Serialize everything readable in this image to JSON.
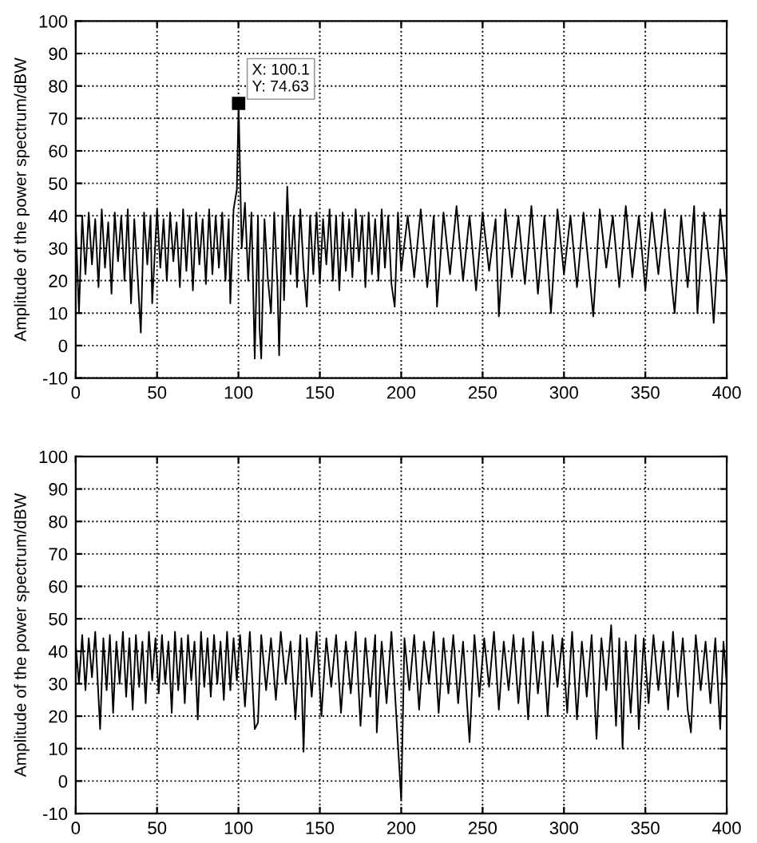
{
  "chart_data": [
    {
      "type": "line",
      "ylabel": "Amplitude of the power spectrum/dBW",
      "xlim": [
        0,
        400
      ],
      "ylim": [
        -10,
        100
      ],
      "xticks": [
        0,
        50,
        100,
        150,
        200,
        250,
        300,
        350,
        400
      ],
      "yticks": [
        -10,
        0,
        10,
        20,
        30,
        40,
        50,
        60,
        70,
        80,
        90,
        100
      ],
      "grid": true,
      "line_style": "solid",
      "annotations": [
        {
          "text": "X: 100.1\nY: 74.63",
          "x": 100.1,
          "y": 74.63
        }
      ],
      "series": [
        {
          "color": "#000000",
          "x": [
            0,
            2,
            4,
            6,
            8,
            10,
            12,
            14,
            16,
            18,
            20,
            22,
            24,
            26,
            28,
            30,
            32,
            34,
            36,
            38,
            40,
            42,
            44,
            46,
            47,
            50,
            52,
            54,
            56,
            58,
            60,
            62,
            64,
            66,
            68,
            70,
            72,
            74,
            76,
            78,
            80,
            82,
            84,
            86,
            88,
            90,
            92,
            94,
            95,
            97,
            99,
            100.1,
            101,
            102,
            104,
            106,
            108,
            110,
            112,
            113,
            114,
            116,
            118,
            120,
            122,
            124,
            125,
            127,
            128,
            130,
            132,
            134,
            136,
            138,
            140,
            142,
            144,
            146,
            148,
            150,
            152,
            154,
            156,
            158,
            160,
            162,
            164,
            166,
            168,
            170,
            172,
            174,
            176,
            178,
            180,
            182,
            184,
            186,
            188,
            190,
            192,
            194,
            196,
            198,
            200,
            204,
            208,
            212,
            216,
            220,
            222,
            226,
            230,
            234,
            238,
            242,
            246,
            250,
            254,
            258,
            260,
            264,
            268,
            272,
            276,
            280,
            284,
            288,
            292,
            296,
            300,
            304,
            308,
            312,
            316,
            318,
            322,
            326,
            330,
            334,
            338,
            342,
            346,
            350,
            354,
            358,
            362,
            366,
            368,
            372,
            376,
            380,
            382,
            386,
            390,
            392,
            396,
            400
          ],
          "values": [
            38,
            10,
            40,
            22,
            41,
            25,
            39,
            18,
            42,
            24,
            38,
            16,
            41,
            26,
            40,
            20,
            42,
            13,
            39,
            22,
            4,
            41,
            25,
            40,
            13,
            42,
            24,
            39,
            20,
            41,
            26,
            38,
            18,
            42,
            23,
            40,
            17,
            41,
            25,
            39,
            19,
            42,
            22,
            40,
            24,
            41,
            20,
            39,
            13,
            42,
            48,
            74.63,
            53,
            30,
            44,
            20,
            41,
            -4,
            40,
            5,
            -4,
            39,
            21,
            10,
            41,
            18,
            -3,
            40,
            14,
            49,
            22,
            40,
            18,
            42,
            24,
            12,
            40,
            22,
            41,
            19,
            39,
            25,
            42,
            20,
            40,
            17,
            41,
            23,
            39,
            21,
            42,
            26,
            40,
            18,
            41,
            22,
            39,
            20,
            42,
            24,
            40,
            19,
            12,
            41,
            23,
            40,
            21,
            42,
            18,
            40,
            12,
            41,
            22,
            43,
            20,
            40,
            17,
            41,
            23,
            39,
            9,
            42,
            21,
            40,
            19,
            43,
            16,
            40,
            10,
            42,
            22,
            40,
            18,
            41,
            20,
            9,
            42,
            24,
            40,
            18,
            43,
            21,
            40,
            17,
            41,
            22,
            42,
            20,
            10,
            40,
            18,
            43,
            10,
            41,
            22,
            7,
            42,
            20
          ]
        }
      ]
    },
    {
      "type": "line",
      "ylabel": "Amplitude of the power spectrum/dBW",
      "xlim": [
        0,
        400
      ],
      "ylim": [
        -10,
        100
      ],
      "xticks": [
        0,
        50,
        100,
        150,
        200,
        250,
        300,
        350,
        400
      ],
      "yticks": [
        -10,
        0,
        10,
        20,
        30,
        40,
        50,
        60,
        70,
        80,
        90,
        100
      ],
      "grid": true,
      "line_style": "solid",
      "series": [
        {
          "color": "#000000",
          "x": [
            0,
            2,
            4,
            6,
            8,
            10,
            12,
            15,
            17,
            19,
            21,
            23,
            25,
            27,
            29,
            31,
            33,
            35,
            37,
            39,
            41,
            43,
            45,
            47,
            49,
            51,
            53,
            55,
            57,
            59,
            61,
            63,
            65,
            67,
            69,
            71,
            73,
            75,
            77,
            79,
            81,
            83,
            85,
            87,
            89,
            91,
            93,
            95,
            97,
            99,
            101,
            104,
            107,
            110,
            112,
            114,
            117,
            120,
            123,
            126,
            129,
            132,
            135,
            138,
            140,
            142,
            145,
            148,
            151,
            154,
            157,
            160,
            163,
            166,
            169,
            172,
            175,
            178,
            181,
            184,
            185,
            188,
            191,
            194,
            197,
            200,
            202,
            205,
            208,
            211,
            214,
            217,
            220,
            223,
            226,
            229,
            232,
            235,
            238,
            242,
            245,
            248,
            251,
            254,
            257,
            260,
            263,
            266,
            269,
            272,
            275,
            278,
            281,
            284,
            287,
            290,
            293,
            296,
            299,
            302,
            305,
            308,
            311,
            314,
            317,
            320,
            323,
            326,
            329,
            332,
            334,
            336,
            338,
            341,
            344,
            346,
            349,
            352,
            355,
            358,
            361,
            364,
            367,
            370,
            373,
            376,
            378,
            381,
            384,
            387,
            390,
            393,
            396,
            398,
            400
          ],
          "values": [
            42,
            30,
            45,
            28,
            44,
            32,
            46,
            16,
            44,
            28,
            45,
            21,
            43,
            30,
            46,
            26,
            44,
            22,
            45,
            29,
            43,
            24,
            46,
            31,
            44,
            27,
            45,
            30,
            43,
            21,
            46,
            28,
            44,
            24,
            45,
            31,
            43,
            19,
            46,
            29,
            44,
            26,
            45,
            30,
            43,
            25,
            46,
            28,
            44,
            31,
            45,
            23,
            46,
            16,
            18,
            45,
            28,
            44,
            25,
            46,
            30,
            43,
            19,
            45,
            9,
            44,
            26,
            46,
            20,
            44,
            29,
            45,
            21,
            43,
            27,
            46,
            17,
            44,
            26,
            45,
            15,
            43,
            24,
            46,
            20,
            -6,
            44,
            28,
            45,
            22,
            43,
            30,
            46,
            21,
            44,
            27,
            45,
            24,
            43,
            12,
            45,
            26,
            44,
            29,
            46,
            22,
            43,
            28,
            45,
            24,
            44,
            19,
            46,
            27,
            43,
            20,
            45,
            29,
            44,
            21,
            46,
            19,
            43,
            26,
            45,
            13,
            44,
            28,
            48,
            17,
            44,
            10,
            43,
            21,
            45,
            16,
            44,
            24,
            45,
            28,
            43,
            22,
            46,
            26,
            44,
            22,
            15,
            45,
            28,
            43,
            24,
            44,
            16,
            43,
            30
          ]
        }
      ]
    }
  ]
}
